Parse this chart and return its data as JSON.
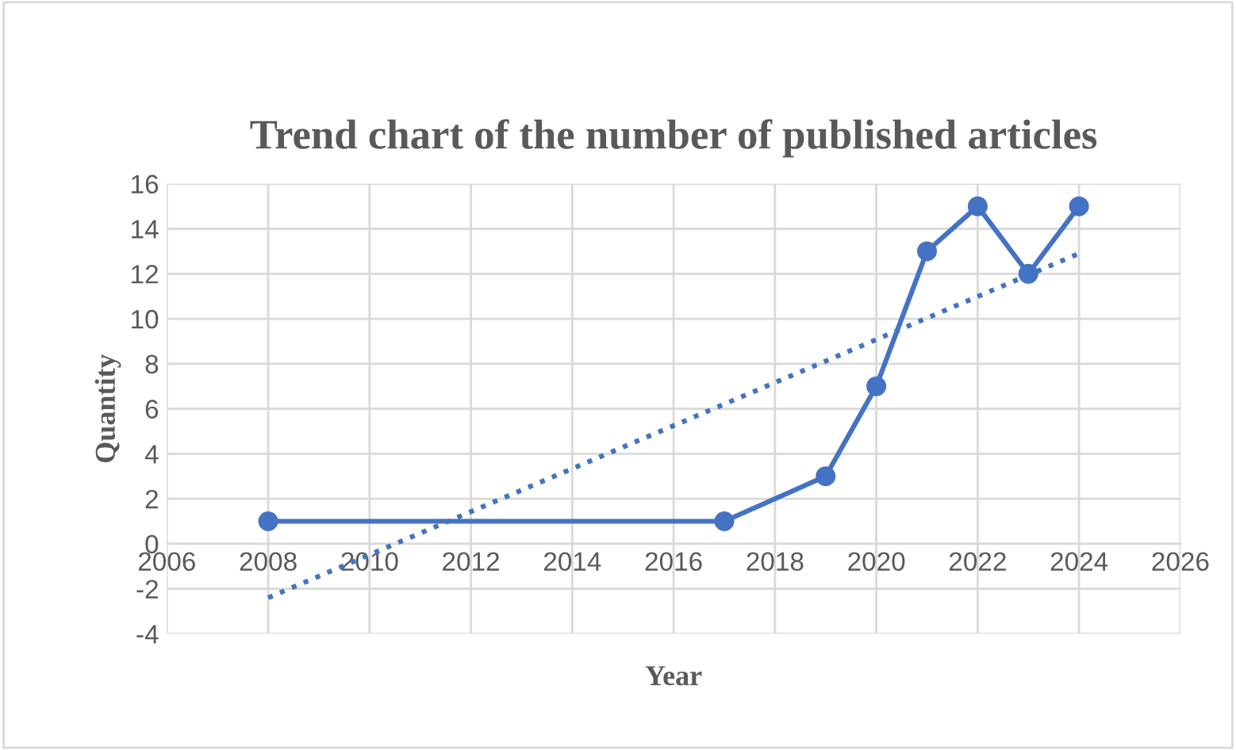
{
  "chart_data": {
    "type": "line",
    "title": "Trend chart of the number of published articles",
    "xlabel": "Year",
    "ylabel": "Quantity",
    "x": [
      2008,
      2017,
      2019,
      2020,
      2021,
      2022,
      2023,
      2024
    ],
    "series": [
      {
        "color": "#4472c4",
        "values": [
          1,
          1,
          3,
          7,
          13,
          15,
          12,
          15
        ],
        "marker": "circle",
        "line_style": "solid"
      },
      {
        "type": "line",
        "x": [
          2008,
          2024
        ],
        "color": "#4472c4",
        "values": [
          -2.4,
          12.9
        ],
        "marker": "none",
        "line_style": "dotted"
      }
    ],
    "xlim": [
      2006,
      2026
    ],
    "xticks": [
      2006,
      2008,
      2010,
      2012,
      2014,
      2016,
      2018,
      2020,
      2022,
      2024,
      2026
    ],
    "ylim": [
      -4,
      16
    ],
    "yticks": [
      -4,
      -2,
      0,
      2,
      4,
      6,
      8,
      10,
      12,
      14,
      16
    ],
    "grid": true,
    "legend": false
  }
}
